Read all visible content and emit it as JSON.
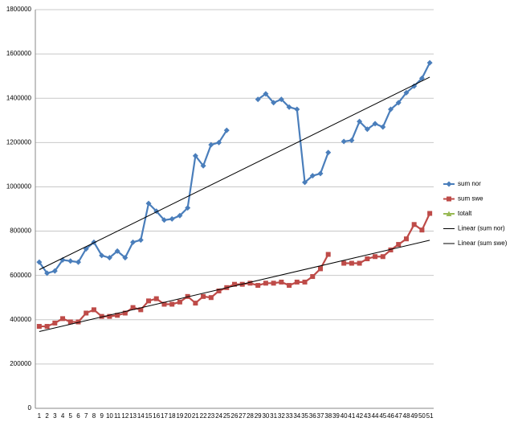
{
  "chart_data": {
    "type": "line",
    "categories": [
      "1",
      "2",
      "3",
      "4",
      "5",
      "6",
      "7",
      "8",
      "9",
      "10",
      "11",
      "12",
      "13",
      "14",
      "15",
      "16",
      "17",
      "18",
      "19",
      "20",
      "21",
      "22",
      "23",
      "24",
      "25",
      "26",
      "27",
      "28",
      "29",
      "30",
      "31",
      "32",
      "33",
      "34",
      "35",
      "36",
      "37",
      "38",
      "39",
      "40",
      "41",
      "42",
      "43",
      "44",
      "45",
      "46",
      "47",
      "48",
      "49",
      "50",
      "51"
    ],
    "series": [
      {
        "name": "sum nor",
        "color": "#4a7ebb",
        "marker": "diamond",
        "values": [
          660000,
          610000,
          620000,
          670000,
          665000,
          660000,
          720000,
          750000,
          690000,
          680000,
          710000,
          680000,
          750000,
          760000,
          925000,
          890000,
          850000,
          855000,
          870000,
          905000,
          1140000,
          1095000,
          1190000,
          1200000,
          1255000,
          null,
          null,
          null,
          1395000,
          1420000,
          1380000,
          1395000,
          1360000,
          1350000,
          1020000,
          1050000,
          1060000,
          1155000,
          null,
          1205000,
          1210000,
          1295000,
          1260000,
          1285000,
          1270000,
          1350000,
          1380000,
          1425000,
          1455000,
          1490000,
          1560000
        ]
      },
      {
        "name": "sum swe",
        "color": "#be4b48",
        "marker": "square",
        "values": [
          370000,
          370000,
          385000,
          405000,
          390000,
          390000,
          430000,
          445000,
          415000,
          415000,
          420000,
          430000,
          455000,
          445000,
          485000,
          495000,
          470000,
          470000,
          480000,
          505000,
          475000,
          505000,
          500000,
          530000,
          545000,
          560000,
          560000,
          565000,
          555000,
          565000,
          565000,
          570000,
          555000,
          570000,
          570000,
          595000,
          630000,
          695000,
          null,
          655000,
          655000,
          655000,
          675000,
          685000,
          685000,
          715000,
          740000,
          765000,
          830000,
          805000,
          880000
        ]
      },
      {
        "name": "totalt",
        "color": "#98b954",
        "marker": "triangle",
        "values": [
          null,
          null,
          null,
          null,
          null,
          null,
          null,
          null,
          null,
          null,
          null,
          null,
          null,
          null,
          null,
          null,
          null,
          null,
          null,
          null,
          null,
          null,
          null,
          null,
          null,
          null,
          null,
          null,
          null,
          null,
          null,
          null,
          null,
          null,
          null,
          null,
          null,
          null,
          null,
          null,
          null,
          null,
          null,
          null,
          null,
          null,
          null,
          null,
          null,
          null,
          null
        ]
      }
    ],
    "trendlines": [
      {
        "name": "Linear (sum nor)",
        "series": 0,
        "color": "#000000"
      },
      {
        "name": "Linear (sum swe)",
        "series": 1,
        "color": "#000000"
      }
    ],
    "ylim": [
      0,
      1800000
    ],
    "yticks": [
      0,
      200000,
      400000,
      600000,
      800000,
      1000000,
      1200000,
      1400000,
      1600000,
      1800000
    ],
    "grid": true,
    "legend": "right"
  }
}
